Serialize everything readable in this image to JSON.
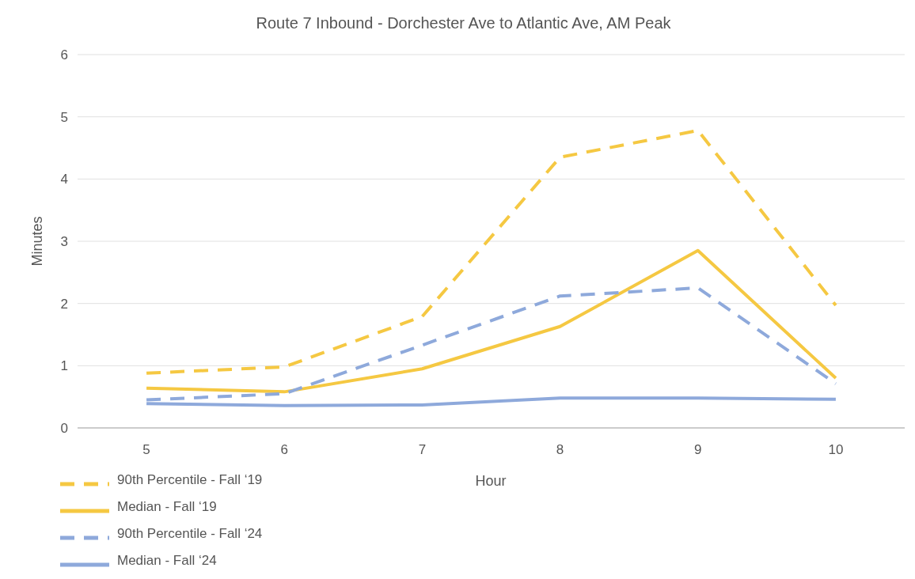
{
  "chart_data": {
    "type": "line",
    "title": "Route 7 Inbound - Dorchester Ave to Atlantic Ave, AM Peak",
    "xlabel": "Hour",
    "ylabel": "Minutes",
    "x": [
      5,
      6,
      7,
      8,
      9,
      10
    ],
    "xlim": [
      4.5,
      10.5
    ],
    "xticks": [
      5,
      6,
      7,
      8,
      9,
      10
    ],
    "ylim": [
      0,
      6
    ],
    "yticks": [
      0,
      1,
      2,
      3,
      4,
      5,
      6
    ],
    "grid": "y",
    "legend": "bottom left",
    "series": [
      {
        "name": "90th Percentile - Fall ‘19",
        "color": "#f5c842",
        "line_style": "dashed",
        "values": [
          0.88,
          0.98,
          1.79,
          4.35,
          4.78,
          1.97
        ]
      },
      {
        "name": "Median - Fall ‘19",
        "color": "#f5c842",
        "line_style": "solid",
        "values": [
          0.64,
          0.58,
          0.95,
          1.63,
          2.85,
          0.8
        ]
      },
      {
        "name": "90th Percentile - Fall ‘24",
        "color": "#8ea9db",
        "line_style": "dashed",
        "values": [
          0.45,
          0.55,
          1.33,
          2.12,
          2.25,
          0.71
        ]
      },
      {
        "name": "Median - Fall ‘24",
        "color": "#8ea9db",
        "line_style": "solid",
        "values": [
          0.39,
          0.36,
          0.37,
          0.48,
          0.48,
          0.46
        ]
      }
    ]
  }
}
